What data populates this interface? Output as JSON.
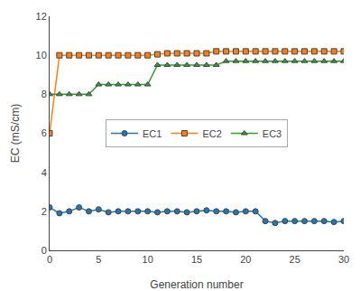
{
  "chart_data": {
    "type": "line",
    "xlabel": "Generation number",
    "ylabel": "EC (mS/cm)",
    "x": [
      0,
      1,
      2,
      3,
      4,
      5,
      6,
      7,
      8,
      9,
      10,
      11,
      12,
      13,
      14,
      15,
      16,
      17,
      18,
      19,
      20,
      21,
      22,
      23,
      24,
      25,
      26,
      27,
      28,
      29,
      30
    ],
    "series": [
      {
        "name": "EC1",
        "marker": "circle",
        "values": [
          2.2,
          1.9,
          2.0,
          2.2,
          2.0,
          2.1,
          1.95,
          2.0,
          2.0,
          2.0,
          2.0,
          1.95,
          2.0,
          2.0,
          1.95,
          2.0,
          2.05,
          2.0,
          2.0,
          1.95,
          2.0,
          2.0,
          1.5,
          1.4,
          1.5,
          1.5,
          1.5,
          1.5,
          1.5,
          1.45,
          1.5
        ]
      },
      {
        "name": "EC2",
        "marker": "square",
        "values": [
          6.0,
          10.0,
          10.0,
          10.0,
          10.0,
          10.0,
          10.0,
          10.0,
          10.0,
          10.0,
          10.0,
          10.05,
          10.1,
          10.1,
          10.1,
          10.1,
          10.1,
          10.2,
          10.2,
          10.2,
          10.2,
          10.2,
          10.2,
          10.2,
          10.2,
          10.2,
          10.2,
          10.2,
          10.2,
          10.2,
          10.2
        ]
      },
      {
        "name": "EC3",
        "marker": "triangle-up",
        "values": [
          8.0,
          8.0,
          8.0,
          8.0,
          8.0,
          8.5,
          8.5,
          8.5,
          8.5,
          8.5,
          8.5,
          9.5,
          9.5,
          9.5,
          9.5,
          9.5,
          9.5,
          9.5,
          9.7,
          9.7,
          9.7,
          9.7,
          9.7,
          9.7,
          9.7,
          9.7,
          9.7,
          9.7,
          9.7,
          9.7,
          9.7
        ]
      }
    ],
    "xlim": [
      0,
      30
    ],
    "ylim": [
      0,
      12
    ],
    "xticks": [
      0,
      5,
      10,
      15,
      20,
      25,
      30
    ],
    "yticks": [
      0,
      2,
      4,
      6,
      8,
      10,
      12
    ],
    "grid": false,
    "legend": "center"
  }
}
